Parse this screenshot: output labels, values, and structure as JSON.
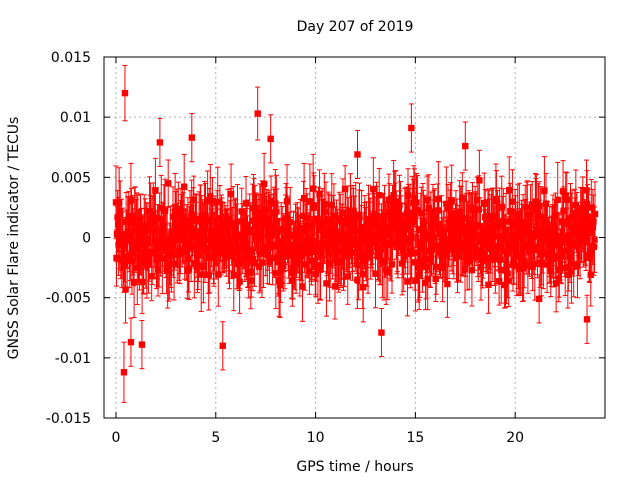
{
  "chart_data": {
    "type": "scatter",
    "title": "Day 207 of 2019",
    "xlabel": "GPS time / hours",
    "ylabel": "GNSS Solar Flare indicator / TECUs",
    "xlim": [
      -0.6,
      24.5
    ],
    "ylim": [
      -0.015,
      0.015
    ],
    "grid": true,
    "legend": "none",
    "marker": "filled-square",
    "error_bars": true,
    "x_ticks": [
      0,
      5,
      10,
      15,
      20
    ],
    "x_tick_labels": [
      "0",
      "5",
      "10",
      "15",
      "20"
    ],
    "y_ticks": [
      -0.015,
      -0.01,
      -0.005,
      0,
      0.005,
      0.01,
      0.015
    ],
    "y_tick_labels": [
      "-0.015",
      "-0.01",
      "-0.005",
      "0",
      "0.005",
      "0.01",
      "0.015"
    ],
    "colors": {
      "series": "#ff0000",
      "grid": "#b0b0b0",
      "axis": "#000000"
    },
    "series": [
      {
        "x_range": [
          0,
          24
        ],
        "typical_y_range": [
          -0.006,
          0.006
        ],
        "typical_error": 0.0025,
        "notable_points": [
          {
            "x": 0.45,
            "y": 0.012,
            "error": 0.0023
          },
          {
            "x": 0.4,
            "y": -0.0112,
            "error": 0.0025
          },
          {
            "x": 1.3,
            "y": -0.0089,
            "error": 0.002
          },
          {
            "x": 0.75,
            "y": -0.0087,
            "error": 0.002
          },
          {
            "x": 5.35,
            "y": -0.009,
            "error": 0.002
          },
          {
            "x": 7.1,
            "y": 0.0103,
            "error": 0.0022
          },
          {
            "x": 7.75,
            "y": 0.0082,
            "error": 0.002
          },
          {
            "x": 3.8,
            "y": 0.0083,
            "error": 0.002
          },
          {
            "x": 2.2,
            "y": 0.0079,
            "error": 0.002
          },
          {
            "x": 14.8,
            "y": 0.0091,
            "error": 0.002
          },
          {
            "x": 17.5,
            "y": 0.0076,
            "error": 0.002
          },
          {
            "x": 13.3,
            "y": -0.0079,
            "error": 0.002
          },
          {
            "x": 12.1,
            "y": 0.0069,
            "error": 0.002
          },
          {
            "x": 23.6,
            "y": -0.0068,
            "error": 0.002
          },
          {
            "x": 21.2,
            "y": -0.0051,
            "error": 0.002
          }
        ]
      }
    ]
  }
}
